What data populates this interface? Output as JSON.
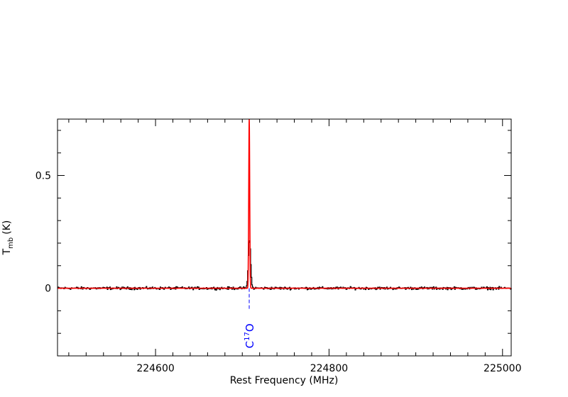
{
  "chart_data": {
    "type": "line",
    "xlabel": "Rest Frequency (MHz)",
    "ylabel": {
      "main": "T",
      "sub": "mb",
      "unit": "(K)"
    },
    "xlim": [
      224487,
      225010
    ],
    "ylim": [
      -0.3,
      0.75
    ],
    "x_ticks": [
      224600,
      224800,
      225000
    ],
    "y_ticks": [
      0,
      0.5
    ],
    "x_tick_labels": [
      "224600",
      "224800",
      "225000"
    ],
    "y_tick_labels": [
      "0",
      "0.5"
    ],
    "x_minor_step": 20,
    "y_minor_step": 0.1,
    "grid": false,
    "series": [
      {
        "style": "observed spectrum (histogram)",
        "color": "#000000",
        "peak": {
          "x": 224708,
          "y": 0.22
        },
        "noise_rms": 0.004
      },
      {
        "style": "model fit",
        "color": "#ff0000",
        "peak": {
          "x": 224708,
          "y": 0.75
        }
      }
    ],
    "annotations": [
      {
        "label_base": "C",
        "label_sup": "17",
        "label_tail": "O",
        "x": 224708,
        "marker_y_top": 0.0,
        "marker_y_bottom": -0.1,
        "color": "#0000ff"
      }
    ]
  }
}
